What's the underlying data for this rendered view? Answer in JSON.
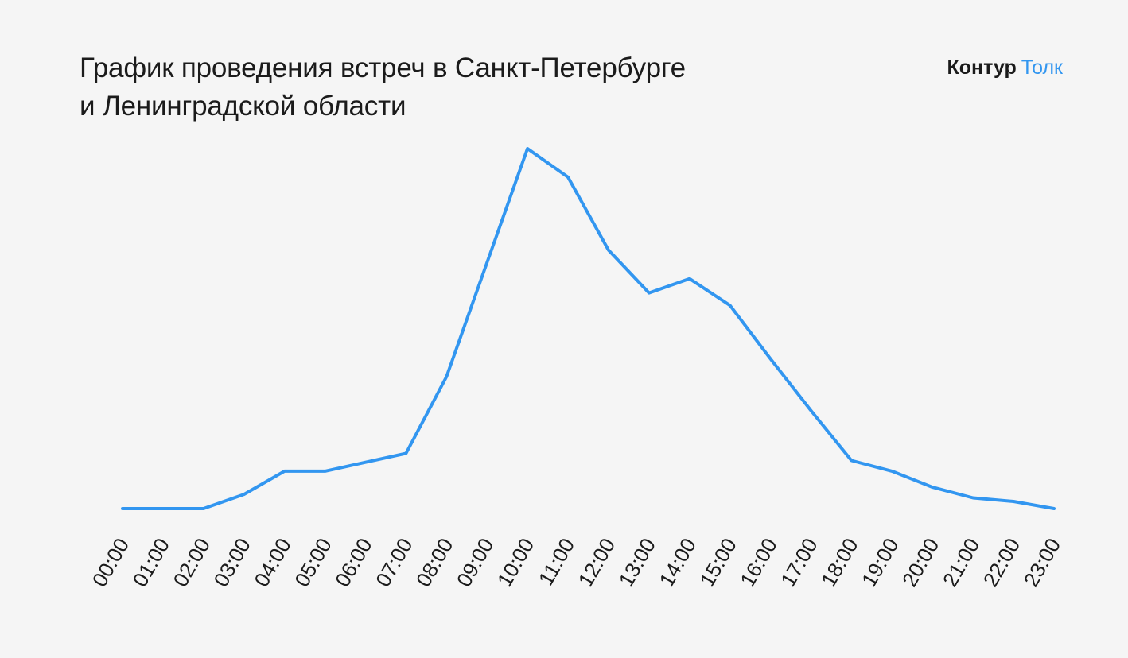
{
  "title": {
    "line1": "График проведения встреч в Санкт-Петербурге",
    "line2": "и Ленинградской области"
  },
  "logo": {
    "brand": "Контур",
    "product": "Толк"
  },
  "colors": {
    "line": "#3296f0",
    "background": "#f5f5f5",
    "text": "#1b1b1b"
  },
  "chart_data": {
    "type": "line",
    "title": "График проведения встреч в Санкт-Петербурге и Ленинградской области",
    "xlabel": "",
    "ylabel": "",
    "y_axis_shown": false,
    "grid": false,
    "x": [
      "00:00",
      "01:00",
      "02:00",
      "03:00",
      "04:00",
      "05:00",
      "06:00",
      "07:00",
      "08:00",
      "09:00",
      "10:00",
      "11:00",
      "12:00",
      "13:00",
      "14:00",
      "15:00",
      "16:00",
      "17:00",
      "18:00",
      "19:00",
      "20:00",
      "21:00",
      "22:00",
      "23:00"
    ],
    "series": [
      {
        "values": [
          0,
          0,
          0,
          4,
          10.5,
          10.5,
          13,
          15.5,
          37,
          69,
          101,
          93,
          72.5,
          60.5,
          64.5,
          57,
          42,
          27.5,
          13.5,
          10.5,
          6,
          3,
          2,
          0
        ]
      }
    ],
    "ylim": [
      0,
      101
    ]
  }
}
